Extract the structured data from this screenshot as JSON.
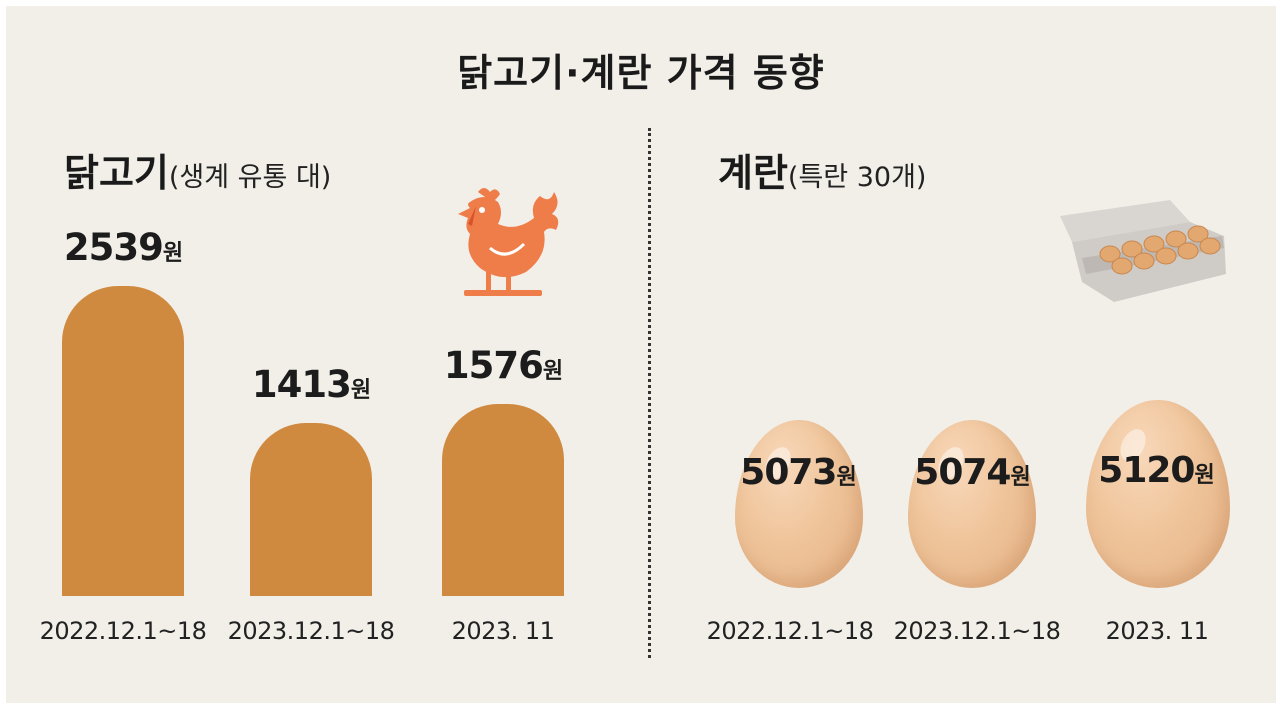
{
  "title": "닭고기·계란 가격 동향",
  "colors": {
    "bar": "#d08a40",
    "egg": "#efc49a",
    "chicken_icon": "#ef7d4a",
    "background": "#f2efe9"
  },
  "chicken_panel": {
    "heading": "닭고기",
    "subheading": "(생계 유통 대)",
    "icon": "chicken-icon"
  },
  "egg_panel": {
    "heading": "계란",
    "subheading": "(특란 30개)",
    "icon": "egg-carton-icon"
  },
  "chart_data": [
    {
      "type": "bar",
      "title": "닭고기(생계 유통 대)",
      "categories": [
        "2022.12.1~18",
        "2023.12.1~18",
        "2023. 11"
      ],
      "values": [
        2539,
        1413,
        1576
      ],
      "unit": "원",
      "value_labels": [
        "2539",
        "1413",
        "1576"
      ]
    },
    {
      "type": "bar",
      "title": "계란(특란 30개)",
      "categories": [
        "2022.12.1~18",
        "2023.12.1~18",
        "2023. 11"
      ],
      "values": [
        5073,
        5074,
        5120
      ],
      "unit": "원",
      "value_labels": [
        "5073",
        "5074",
        "5120"
      ]
    }
  ]
}
